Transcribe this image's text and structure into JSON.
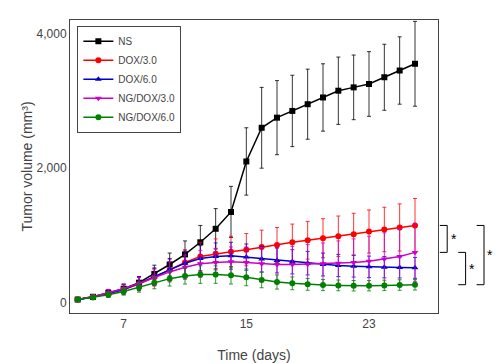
{
  "chart_data": {
    "type": "line",
    "xlabel": "Time (days)",
    "ylabel": "Tumor volume (mm³)",
    "x": [
      4,
      5,
      6,
      7,
      8,
      9,
      10,
      11,
      12,
      13,
      14,
      15,
      16,
      17,
      18,
      19,
      20,
      21,
      22,
      23,
      24,
      25,
      26
    ],
    "xlim": [
      3.5,
      27.5
    ],
    "xticks": [
      7,
      15,
      23
    ],
    "ylim": [
      -150,
      4200
    ],
    "yticks": [
      0,
      {
        "value": 2000,
        "label": "2,000"
      },
      {
        "value": 4000,
        "label": "4,000"
      }
    ],
    "grid": false,
    "legend": "upper left",
    "series": [
      {
        "name": "NS",
        "color": "#000000",
        "marker": "square",
        "values": [
          50,
          90,
          150,
          210,
          300,
          430,
          570,
          720,
          900,
          1100,
          1350,
          2100,
          2600,
          2750,
          2850,
          2950,
          3050,
          3150,
          3200,
          3250,
          3350,
          3450,
          3550
        ],
        "errors": [
          20,
          30,
          50,
          70,
          90,
          130,
          170,
          200,
          250,
          300,
          380,
          500,
          600,
          550,
          530,
          520,
          500,
          500,
          480,
          480,
          490,
          500,
          630
        ]
      },
      {
        "name": "DOX/3.0",
        "color": "#ff0000",
        "marker": "circle",
        "values": [
          50,
          90,
          140,
          200,
          280,
          380,
          490,
          600,
          690,
          730,
          760,
          790,
          830,
          860,
          900,
          930,
          960,
          990,
          1020,
          1060,
          1090,
          1120,
          1150
        ],
        "errors": [
          20,
          30,
          50,
          70,
          100,
          130,
          160,
          190,
          210,
          220,
          230,
          240,
          250,
          260,
          270,
          280,
          290,
          300,
          310,
          320,
          330,
          350,
          400
        ]
      },
      {
        "name": "DOX/6.0",
        "color": "#0000cc",
        "marker": "triangle-up",
        "values": [
          50,
          85,
          140,
          200,
          290,
          390,
          500,
          590,
          660,
          690,
          700,
          680,
          650,
          630,
          610,
          590,
          570,
          555,
          545,
          535,
          530,
          525,
          520
        ],
        "errors": [
          20,
          30,
          50,
          70,
          100,
          130,
          160,
          180,
          190,
          200,
          200,
          195,
          190,
          185,
          180,
          175,
          170,
          165,
          162,
          160,
          158,
          155,
          155
        ]
      },
      {
        "name": "NG/DOX/3.0",
        "color": "#cc00cc",
        "marker": "triangle-down",
        "values": [
          50,
          90,
          150,
          210,
          290,
          380,
          460,
          530,
          580,
          600,
          610,
          600,
          580,
          570,
          570,
          575,
          580,
          590,
          600,
          620,
          650,
          690,
          750
        ],
        "errors": [
          20,
          30,
          50,
          70,
          90,
          120,
          150,
          180,
          200,
          210,
          220,
          230,
          240,
          250,
          270,
          290,
          310,
          330,
          350,
          370,
          390,
          410,
          430
        ]
      },
      {
        "name": "NG/DOX/6.0",
        "color": "#008000",
        "marker": "circle",
        "values": [
          50,
          80,
          120,
          170,
          230,
          300,
          360,
          400,
          420,
          420,
          410,
          380,
          340,
          310,
          290,
          275,
          265,
          260,
          255,
          255,
          260,
          265,
          270
        ],
        "errors": [
          20,
          25,
          40,
          55,
          70,
          90,
          110,
          120,
          130,
          130,
          130,
          125,
          115,
          105,
          95,
          88,
          83,
          80,
          78,
          77,
          77,
          78,
          79
        ]
      }
    ],
    "annotations": [
      {
        "text": "*",
        "from": 1150,
        "to": 750
      },
      {
        "text": "*",
        "from": 1150,
        "to": 270
      },
      {
        "text": "*",
        "from": 750,
        "to": 270
      }
    ]
  }
}
